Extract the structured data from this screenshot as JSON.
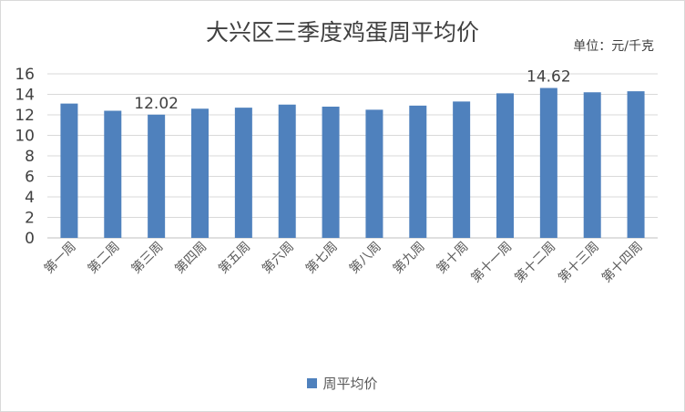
{
  "chart_data": {
    "type": "bar",
    "title": "大兴区三季度鸡蛋周平均价",
    "unit_label": "单位：元/千克",
    "categories": [
      "第一周",
      "第二周",
      "第三周",
      "第四周",
      "第五周",
      "第六周",
      "第七周",
      "第八周",
      "第九周",
      "第十周",
      "第十一周",
      "第十二周",
      "第十三周",
      "第十四周"
    ],
    "series": [
      {
        "name": "周平均价",
        "color": "#4f81bd",
        "values": [
          13.1,
          12.4,
          12.02,
          12.6,
          12.7,
          13.0,
          12.8,
          12.5,
          12.9,
          13.3,
          14.1,
          14.62,
          14.2,
          14.3
        ]
      }
    ],
    "data_labels": [
      {
        "category": "第三周",
        "text": "12.02"
      },
      {
        "category": "第十二周",
        "text": "14.62"
      }
    ],
    "yticks": [
      "0",
      "2",
      "4",
      "6",
      "8",
      "10",
      "12",
      "14",
      "16"
    ],
    "ylim": [
      0,
      16
    ],
    "grid": true,
    "legend_position": "bottom"
  }
}
